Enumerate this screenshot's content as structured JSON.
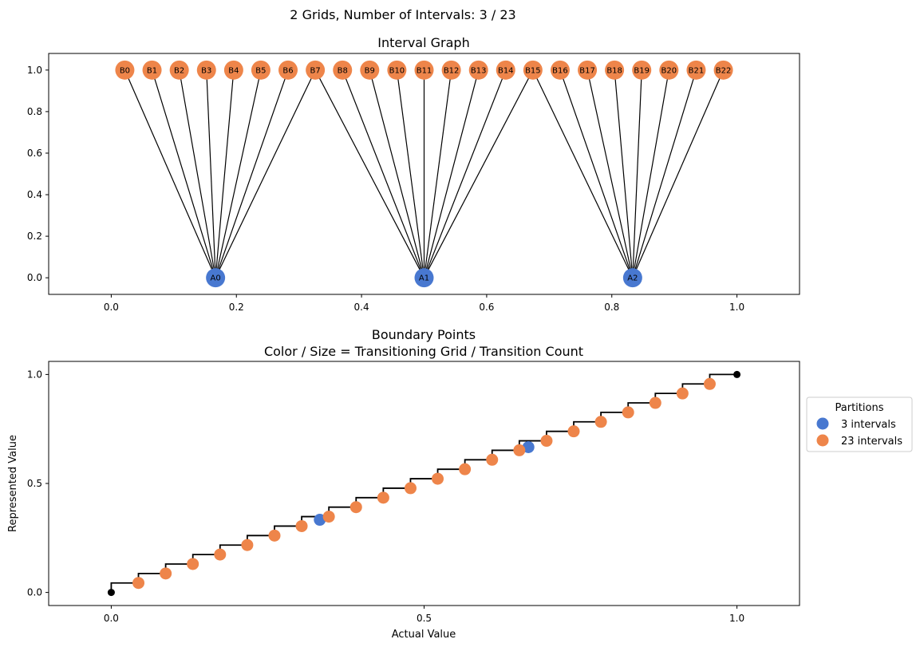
{
  "figure": {
    "suptitle": "2 Grids, Number of Intervals: 3 / 23"
  },
  "chart_data": [
    {
      "type": "graph",
      "title": "Interval Graph",
      "xlim": [
        -0.1,
        1.1
      ],
      "ylim": [
        -0.08,
        1.08
      ],
      "xticks": [
        0.0,
        0.2,
        0.4,
        0.6,
        0.8,
        1.0
      ],
      "xtick_labels": [
        "0.0",
        "0.2",
        "0.4",
        "0.6",
        "0.8",
        "1.0"
      ],
      "yticks": [
        0.0,
        0.2,
        0.4,
        0.6,
        0.8,
        1.0
      ],
      "ytick_labels": [
        "0.0",
        "0.2",
        "0.4",
        "0.6",
        "0.8",
        "1.0"
      ],
      "grid": false,
      "node_color_a": "#4878d0",
      "node_color_b": "#ee854a",
      "a_nodes": [
        {
          "label": "A0",
          "x": 0.1667,
          "y": 0
        },
        {
          "label": "A1",
          "x": 0.5,
          "y": 0
        },
        {
          "label": "A2",
          "x": 0.8333,
          "y": 0
        }
      ],
      "b_nodes": [
        {
          "label": "B0",
          "x": 0.0217,
          "y": 1,
          "a": 0
        },
        {
          "label": "B1",
          "x": 0.0652,
          "y": 1,
          "a": 0
        },
        {
          "label": "B2",
          "x": 0.1087,
          "y": 1,
          "a": 0
        },
        {
          "label": "B3",
          "x": 0.1522,
          "y": 1,
          "a": 0
        },
        {
          "label": "B4",
          "x": 0.1957,
          "y": 1,
          "a": 0
        },
        {
          "label": "B5",
          "x": 0.2391,
          "y": 1,
          "a": 0
        },
        {
          "label": "B6",
          "x": 0.2826,
          "y": 1,
          "a": 0
        },
        {
          "label": "B7",
          "x": 0.3261,
          "y": 1,
          "a": 0
        },
        {
          "label": "B7",
          "x": 0.3261,
          "y": 1,
          "a": 1
        },
        {
          "label": "B8",
          "x": 0.3696,
          "y": 1,
          "a": 1
        },
        {
          "label": "B9",
          "x": 0.413,
          "y": 1,
          "a": 1
        },
        {
          "label": "B10",
          "x": 0.4565,
          "y": 1,
          "a": 1
        },
        {
          "label": "B11",
          "x": 0.5,
          "y": 1,
          "a": 1
        },
        {
          "label": "B12",
          "x": 0.5435,
          "y": 1,
          "a": 1
        },
        {
          "label": "B13",
          "x": 0.587,
          "y": 1,
          "a": 1
        },
        {
          "label": "B14",
          "x": 0.6304,
          "y": 1,
          "a": 1
        },
        {
          "label": "B15",
          "x": 0.6739,
          "y": 1,
          "a": 1
        },
        {
          "label": "B15",
          "x": 0.6739,
          "y": 1,
          "a": 2
        },
        {
          "label": "B16",
          "x": 0.7174,
          "y": 1,
          "a": 2
        },
        {
          "label": "B17",
          "x": 0.7609,
          "y": 1,
          "a": 2
        },
        {
          "label": "B18",
          "x": 0.8043,
          "y": 1,
          "a": 2
        },
        {
          "label": "B19",
          "x": 0.8478,
          "y": 1,
          "a": 2
        },
        {
          "label": "B20",
          "x": 0.8913,
          "y": 1,
          "a": 2
        },
        {
          "label": "B21",
          "x": 0.9348,
          "y": 1,
          "a": 2
        },
        {
          "label": "B22",
          "x": 0.9783,
          "y": 1,
          "a": 2
        }
      ]
    },
    {
      "type": "scatter",
      "title": "Boundary Points",
      "subtitle": "Color / Size = Transitioning Grid / Transition Count",
      "xlabel": "Actual Value",
      "ylabel": "Represented Value",
      "xlim": [
        -0.1,
        1.1
      ],
      "ylim": [
        -0.06,
        1.06
      ],
      "xticks": [
        0.0,
        0.5,
        1.0
      ],
      "xtick_labels": [
        "0.0",
        "0.5",
        "1.0"
      ],
      "yticks": [
        0.0,
        0.5,
        1.0
      ],
      "ytick_labels": [
        "0.0",
        "0.5",
        "1.0"
      ],
      "grid": false,
      "legend": {
        "title": "Partitions",
        "placement": "outside right",
        "entries": [
          {
            "label": "3 intervals",
            "color": "#4878d0"
          },
          {
            "label": "23 intervals",
            "color": "#ee854a"
          }
        ]
      },
      "step": {
        "n": 23,
        "color": "#000000"
      },
      "endpoints": [
        {
          "x": 0.0,
          "y": 0.0,
          "color": "#000000"
        },
        {
          "x": 1.0,
          "y": 1.0,
          "color": "#000000"
        }
      ],
      "series": [
        {
          "name": "3 intervals",
          "color": "#4878d0",
          "points": [
            {
              "x": 0.3333,
              "y": 0.3333
            },
            {
              "x": 0.6667,
              "y": 0.6667
            }
          ]
        },
        {
          "name": "23 intervals",
          "color": "#ee854a",
          "points": [
            {
              "x": 0.0435,
              "y": 0.0435
            },
            {
              "x": 0.087,
              "y": 0.087
            },
            {
              "x": 0.1304,
              "y": 0.1304
            },
            {
              "x": 0.1739,
              "y": 0.1739
            },
            {
              "x": 0.2174,
              "y": 0.2174
            },
            {
              "x": 0.2609,
              "y": 0.2609
            },
            {
              "x": 0.3043,
              "y": 0.3043
            },
            {
              "x": 0.3478,
              "y": 0.3478
            },
            {
              "x": 0.3913,
              "y": 0.3913
            },
            {
              "x": 0.4348,
              "y": 0.4348
            },
            {
              "x": 0.4783,
              "y": 0.4783
            },
            {
              "x": 0.5217,
              "y": 0.5217
            },
            {
              "x": 0.5652,
              "y": 0.5652
            },
            {
              "x": 0.6087,
              "y": 0.6087
            },
            {
              "x": 0.6522,
              "y": 0.6522
            },
            {
              "x": 0.6957,
              "y": 0.6957
            },
            {
              "x": 0.7391,
              "y": 0.7391
            },
            {
              "x": 0.7826,
              "y": 0.7826
            },
            {
              "x": 0.8261,
              "y": 0.8261
            },
            {
              "x": 0.8696,
              "y": 0.8696
            },
            {
              "x": 0.913,
              "y": 0.913
            },
            {
              "x": 0.9565,
              "y": 0.9565
            }
          ]
        }
      ]
    }
  ]
}
